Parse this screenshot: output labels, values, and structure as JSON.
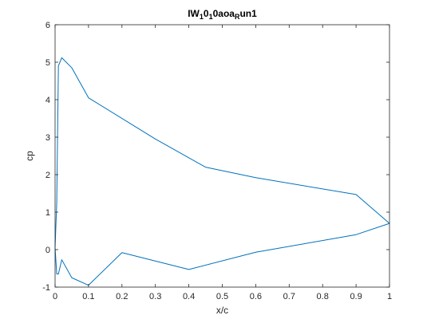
{
  "chart_data": {
    "type": "line",
    "title_parts": [
      "IW",
      "1",
      "0",
      "1",
      "0aoa",
      "R",
      "un1"
    ],
    "xlabel": "x/c",
    "ylabel": "cp",
    "xlim": [
      0,
      1
    ],
    "ylim": [
      -1,
      6
    ],
    "xticks": [
      0,
      0.1,
      0.2,
      0.3,
      0.4,
      0.5,
      0.6,
      0.7,
      0.8,
      0.9,
      1
    ],
    "xtick_labels": [
      "0",
      "0.1",
      "0.2",
      "0.3",
      "0.4",
      "0.5",
      "0.6",
      "0.7",
      "0.8",
      "0.9",
      "1"
    ],
    "yticks": [
      -1,
      0,
      1,
      2,
      3,
      4,
      5,
      6
    ],
    "ytick_labels": [
      "-1",
      "0",
      "1",
      "2",
      "3",
      "4",
      "5",
      "6"
    ],
    "grid": false,
    "box": true,
    "line_color": "#0072BD",
    "axes_color": "#262626",
    "series": [
      {
        "x": [
          1.0,
          0.9,
          0.6,
          0.45,
          0.3,
          0.1,
          0.05,
          0.02,
          0.01,
          0.005,
          0.0,
          0.005,
          0.01,
          0.02,
          0.05,
          0.1,
          0.2,
          0.4,
          0.6,
          0.9,
          1.0
        ],
        "y": [
          0.7,
          1.47,
          1.92,
          2.2,
          2.95,
          4.05,
          4.85,
          5.12,
          4.9,
          1.25,
          0.05,
          -0.65,
          -0.65,
          -0.27,
          -0.75,
          -0.95,
          -0.08,
          -0.53,
          -0.07,
          0.4,
          0.7
        ]
      }
    ]
  }
}
